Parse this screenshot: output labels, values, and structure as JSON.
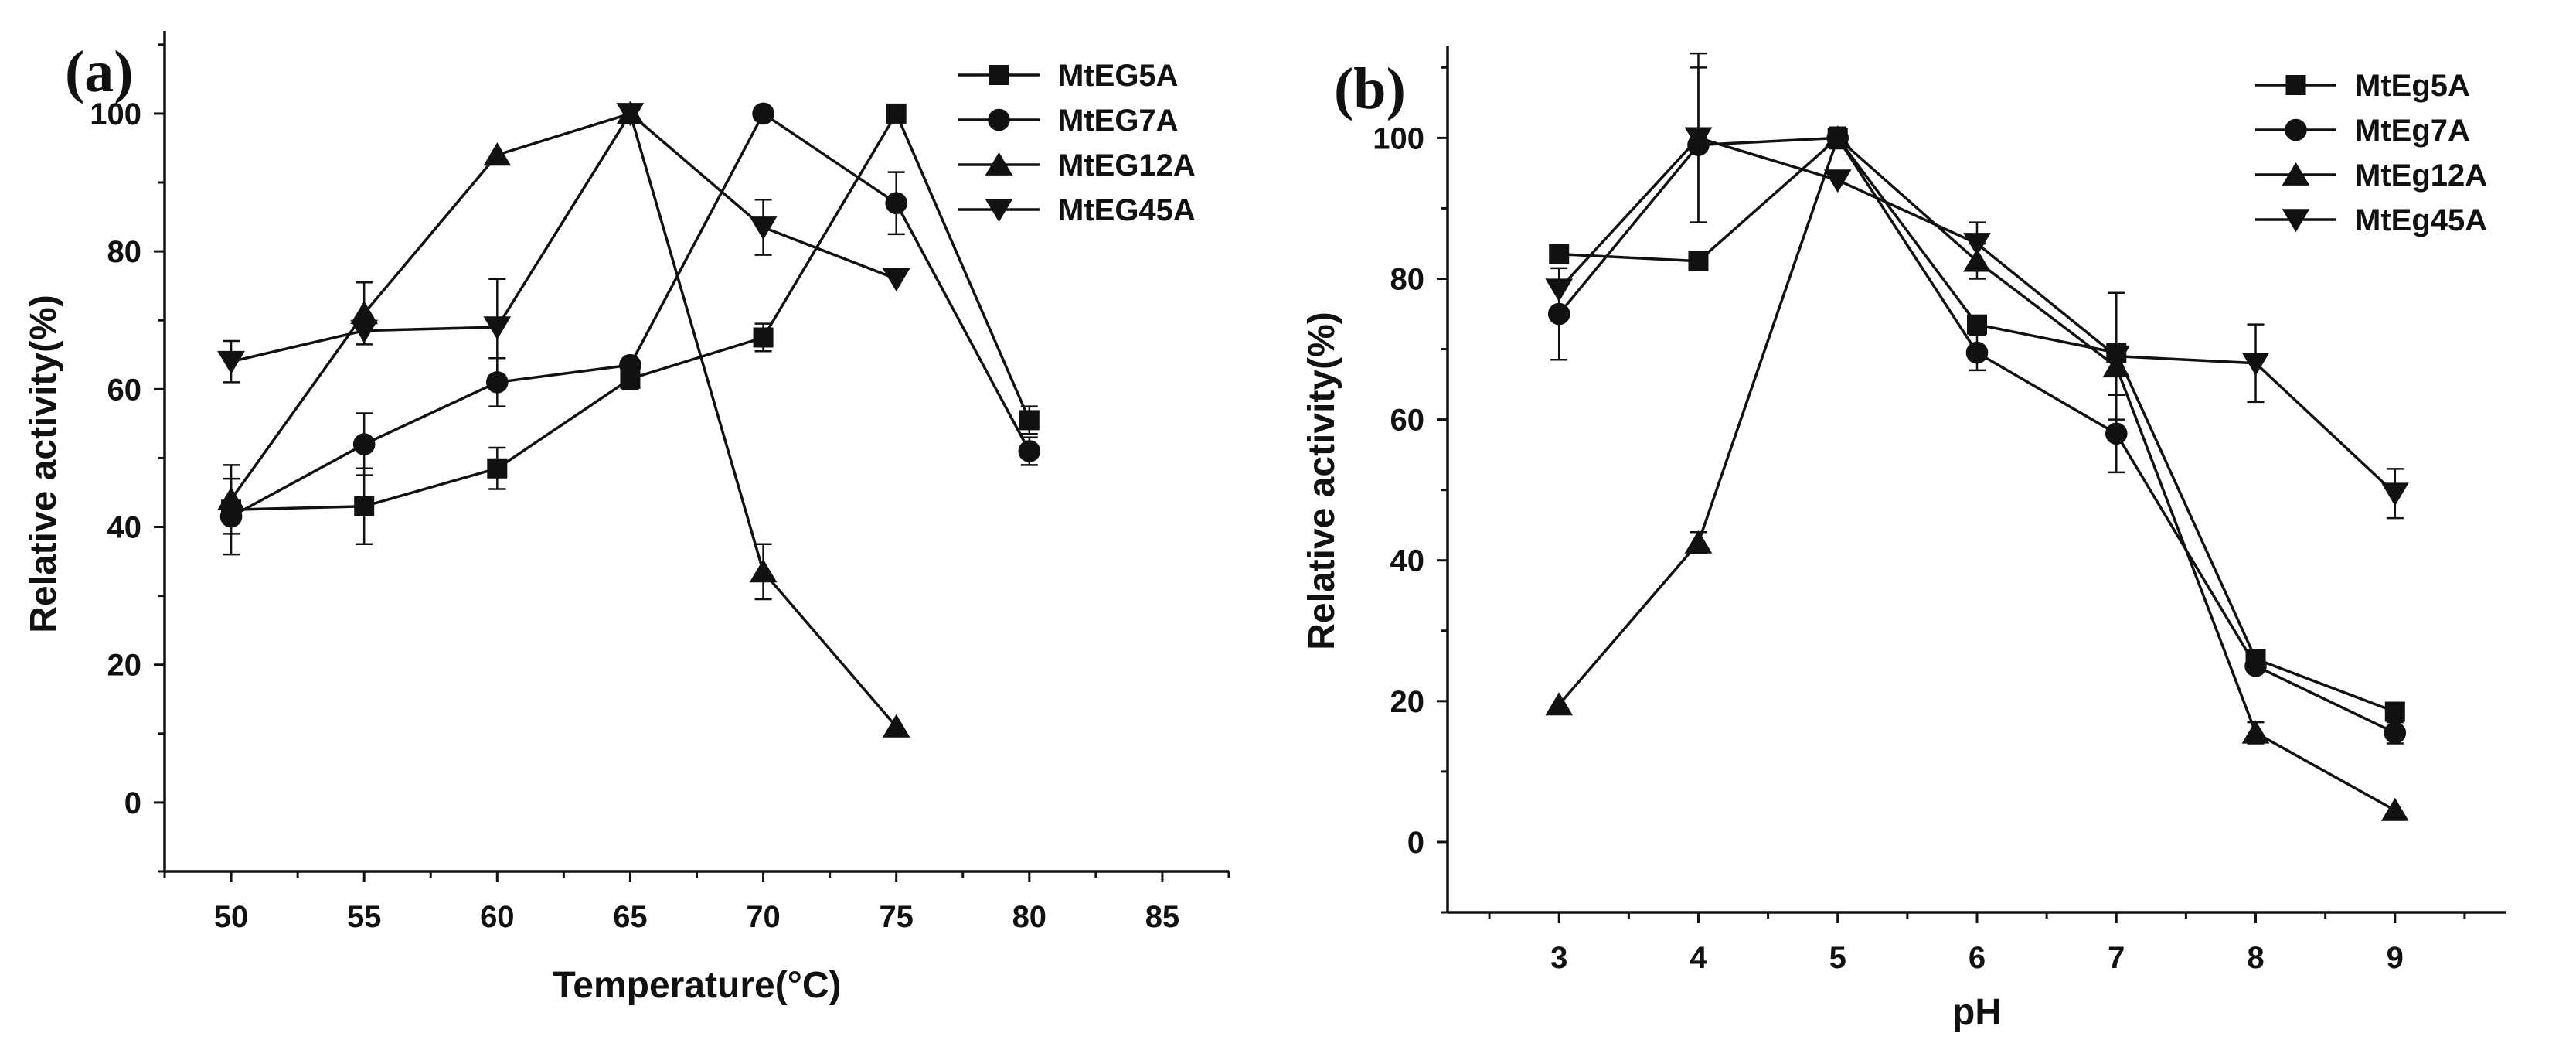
{
  "chart_data": [
    {
      "panel": "(a)",
      "type": "line",
      "title": "",
      "xlabel": "Temperature(°C)",
      "ylabel": "Relative activity(%)",
      "xlim": [
        47.5,
        87.5
      ],
      "ylim": [
        -10,
        112
      ],
      "xticks": [
        50,
        55,
        60,
        65,
        70,
        75,
        80,
        85
      ],
      "yticks": [
        0,
        20,
        40,
        60,
        80,
        100
      ],
      "legend_position": "top-right",
      "series": [
        {
          "name": "MtEG5A",
          "marker": "square",
          "x": [
            50,
            55,
            60,
            65,
            70,
            75,
            80
          ],
          "y": [
            42.5,
            43,
            48.5,
            61.5,
            67.5,
            100,
            55.5
          ],
          "err": [
            0,
            5.5,
            3,
            1.5,
            2,
            0,
            2
          ]
        },
        {
          "name": "MtEG7A",
          "marker": "circle",
          "x": [
            50,
            55,
            60,
            65,
            70,
            75,
            80
          ],
          "y": [
            41.5,
            52,
            61,
            63.5,
            100,
            87,
            51
          ],
          "err": [
            5.5,
            4.5,
            3.5,
            0,
            0,
            4.5,
            2
          ]
        },
        {
          "name": "MtEG12A",
          "marker": "triangle-up",
          "x": [
            50,
            55,
            60,
            65,
            70,
            75
          ],
          "y": [
            44,
            71,
            94,
            100,
            33.5,
            11
          ],
          "err": [
            5,
            4.5,
            0,
            0,
            4,
            0
          ]
        },
        {
          "name": "MtEG45A",
          "marker": "triangle-down",
          "x": [
            50,
            55,
            60,
            65,
            70,
            75
          ],
          "y": [
            64,
            68.5,
            69,
            100,
            83.5,
            76
          ],
          "err": [
            3,
            0,
            7,
            0,
            4,
            0
          ]
        }
      ]
    },
    {
      "panel": "(b)",
      "type": "line",
      "title": "",
      "xlabel": "pH",
      "ylabel": "Relative activity(%)",
      "xlim": [
        2.2,
        9.8
      ],
      "ylim": [
        -10,
        113
      ],
      "xticks": [
        3,
        4,
        5,
        6,
        7,
        8,
        9
      ],
      "yticks": [
        0,
        20,
        40,
        60,
        80,
        100
      ],
      "legend_position": "top-right",
      "series": [
        {
          "name": "MtEg5A",
          "marker": "square",
          "x": [
            3,
            4,
            5,
            6,
            7,
            8,
            9
          ],
          "y": [
            83.5,
            82.5,
            100,
            73.5,
            69.5,
            26,
            18.5
          ],
          "err": [
            0,
            0,
            0,
            0,
            0,
            0,
            0
          ]
        },
        {
          "name": "MtEg7A",
          "marker": "circle",
          "x": [
            3,
            4,
            5,
            6,
            7,
            8,
            9
          ],
          "y": [
            75,
            99,
            100,
            69.5,
            58,
            25,
            15.5
          ],
          "err": [
            6.5,
            11,
            0,
            2.5,
            5.5,
            0,
            1.5
          ]
        },
        {
          "name": "MtEg12A",
          "marker": "triangle-up",
          "x": [
            3,
            4,
            5,
            6,
            7,
            8,
            9
          ],
          "y": [
            19.5,
            42.5,
            100,
            82.5,
            67.5,
            15.5,
            4.5
          ],
          "err": [
            0,
            1.5,
            1.5,
            2.5,
            0,
            1.5,
            0
          ]
        },
        {
          "name": "MtEg45A",
          "marker": "triangle-down",
          "x": [
            3,
            4,
            5,
            6,
            7,
            8,
            9
          ],
          "y": [
            78.5,
            100,
            94,
            85,
            69,
            68,
            49.5
          ],
          "err": [
            0,
            12,
            0,
            3,
            9,
            5.5,
            3.5
          ]
        }
      ]
    }
  ]
}
